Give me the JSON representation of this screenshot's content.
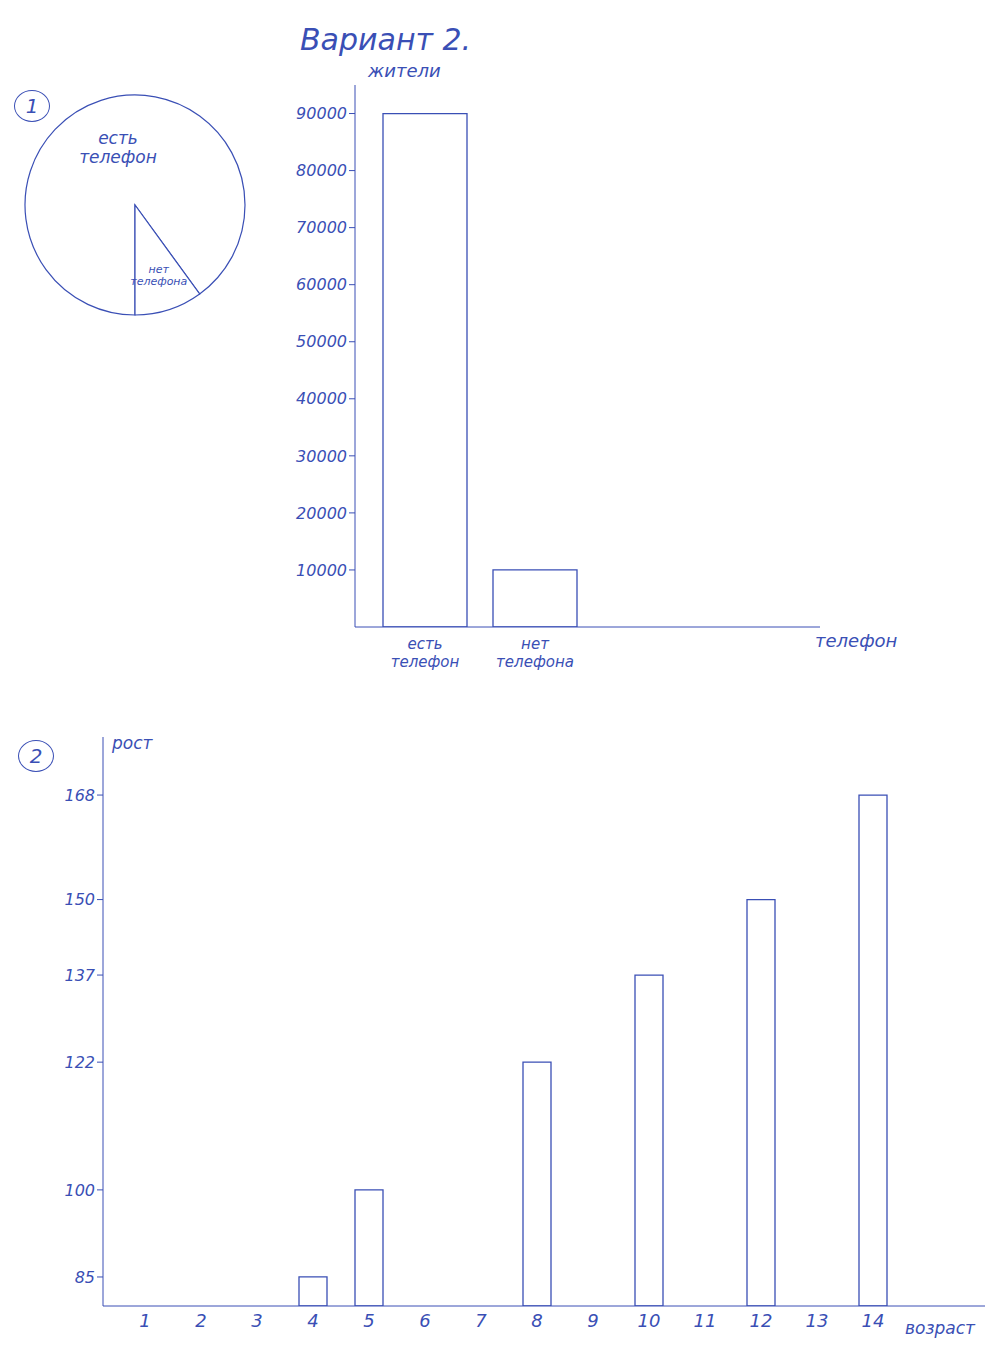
{
  "title": "Вариант 2.",
  "chart_data": [
    {
      "type": "pie",
      "annotation": "1",
      "categories": [
        "есть телефон",
        "нет телефона"
      ],
      "values": [
        90000,
        10000
      ],
      "color": "#3a4fb5"
    },
    {
      "type": "bar",
      "categories": [
        "есть телефон",
        "нет телефона"
      ],
      "values": [
        90000,
        10000
      ],
      "ylabel": "жители",
      "xlabel": "телефон",
      "ylim": [
        0,
        95000
      ],
      "yticks": [
        10000,
        20000,
        30000,
        40000,
        50000,
        60000,
        70000,
        80000,
        90000
      ],
      "color": "#3a4fb5"
    },
    {
      "type": "bar",
      "annotation": "2",
      "categories": [
        "1",
        "2",
        "3",
        "4",
        "5",
        "6",
        "7",
        "8",
        "9",
        "10",
        "11",
        "12",
        "13",
        "14"
      ],
      "values": [
        null,
        null,
        null,
        85,
        100,
        null,
        null,
        122,
        null,
        137,
        null,
        150,
        null,
        168
      ],
      "ylabel": "рост",
      "xlabel": "возраст",
      "ylim": [
        80,
        178
      ],
      "yticks": [
        85,
        100,
        122,
        137,
        150,
        168
      ],
      "color": "#3a4fb5"
    }
  ]
}
